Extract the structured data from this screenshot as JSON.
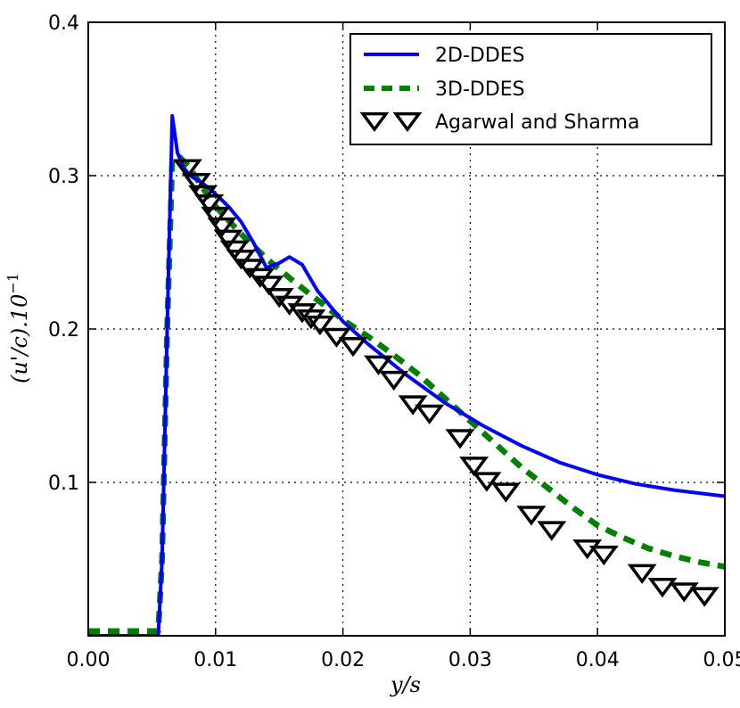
{
  "chart_data": {
    "type": "line",
    "xlabel": "y/s",
    "ylabel": "(u'/c).10",
    "ylabel_exponent": "−1",
    "xlim": [
      0.0,
      0.05
    ],
    "ylim": [
      0.0,
      0.4
    ],
    "xticks": [
      0.0,
      0.01,
      0.02,
      0.03,
      0.04,
      0.05
    ],
    "xtick_labels": [
      "0.00",
      "0.01",
      "0.02",
      "0.03",
      "0.04",
      "0.05"
    ],
    "yticks": [
      0.1,
      0.2,
      0.3,
      0.4
    ],
    "ytick_labels": [
      "0.1",
      "0.2",
      "0.3",
      "0.4"
    ],
    "grid": true,
    "legend_position": "top-right",
    "colors": {
      "ddes2d": "#0000ff",
      "ddes3d": "#008000",
      "markers": "#000000"
    },
    "series": [
      {
        "name": "2D-DDES",
        "style": "solid",
        "color": "#0000ff",
        "x": [
          0.0,
          0.0055,
          0.0058,
          0.0062,
          0.0066,
          0.007,
          0.0075,
          0.008,
          0.009,
          0.01,
          0.011,
          0.012,
          0.013,
          0.014,
          0.015,
          0.0158,
          0.0168,
          0.018,
          0.02,
          0.022,
          0.025,
          0.028,
          0.031,
          0.034,
          0.037,
          0.04,
          0.043,
          0.046,
          0.05
        ],
        "values": [
          0.0,
          0.0,
          0.05,
          0.2,
          0.339,
          0.315,
          0.305,
          0.3,
          0.295,
          0.288,
          0.28,
          0.27,
          0.256,
          0.24,
          0.243,
          0.247,
          0.242,
          0.225,
          0.205,
          0.19,
          0.17,
          0.152,
          0.137,
          0.124,
          0.113,
          0.105,
          0.099,
          0.095,
          0.091
        ]
      },
      {
        "name": "3D-DDES",
        "style": "dashed",
        "color": "#008000",
        "x": [
          0.0,
          0.0055,
          0.0058,
          0.0062,
          0.0066,
          0.0072,
          0.008,
          0.009,
          0.01,
          0.012,
          0.014,
          0.016,
          0.018,
          0.02,
          0.022,
          0.024,
          0.026,
          0.028,
          0.03,
          0.032,
          0.034,
          0.036,
          0.038,
          0.04,
          0.042,
          0.044,
          0.046,
          0.048,
          0.05
        ],
        "values": [
          0.003,
          0.003,
          0.05,
          0.2,
          0.31,
          0.312,
          0.305,
          0.292,
          0.28,
          0.262,
          0.246,
          0.232,
          0.219,
          0.206,
          0.195,
          0.183,
          0.17,
          0.155,
          0.14,
          0.125,
          0.11,
          0.097,
          0.084,
          0.072,
          0.064,
          0.057,
          0.052,
          0.048,
          0.045
        ]
      },
      {
        "name": "Agarwal and Sharma",
        "style": "markers",
        "marker": "down-triangle",
        "color": "#000000",
        "x": [
          0.0078,
          0.0085,
          0.009,
          0.0095,
          0.01,
          0.0105,
          0.011,
          0.0115,
          0.012,
          0.0127,
          0.0135,
          0.0142,
          0.015,
          0.0158,
          0.0168,
          0.0175,
          0.0182,
          0.0195,
          0.0208,
          0.0228,
          0.024,
          0.0255,
          0.0268,
          0.0292,
          0.0303,
          0.0313,
          0.0328,
          0.0348,
          0.0364,
          0.0392,
          0.0405,
          0.0435,
          0.0451,
          0.0468,
          0.0484
        ],
        "values": [
          0.306,
          0.297,
          0.289,
          0.283,
          0.275,
          0.268,
          0.26,
          0.253,
          0.247,
          0.241,
          0.235,
          0.23,
          0.222,
          0.217,
          0.212,
          0.208,
          0.204,
          0.196,
          0.19,
          0.178,
          0.168,
          0.152,
          0.146,
          0.13,
          0.112,
          0.102,
          0.095,
          0.08,
          0.07,
          0.058,
          0.054,
          0.042,
          0.033,
          0.03,
          0.027
        ]
      }
    ]
  }
}
